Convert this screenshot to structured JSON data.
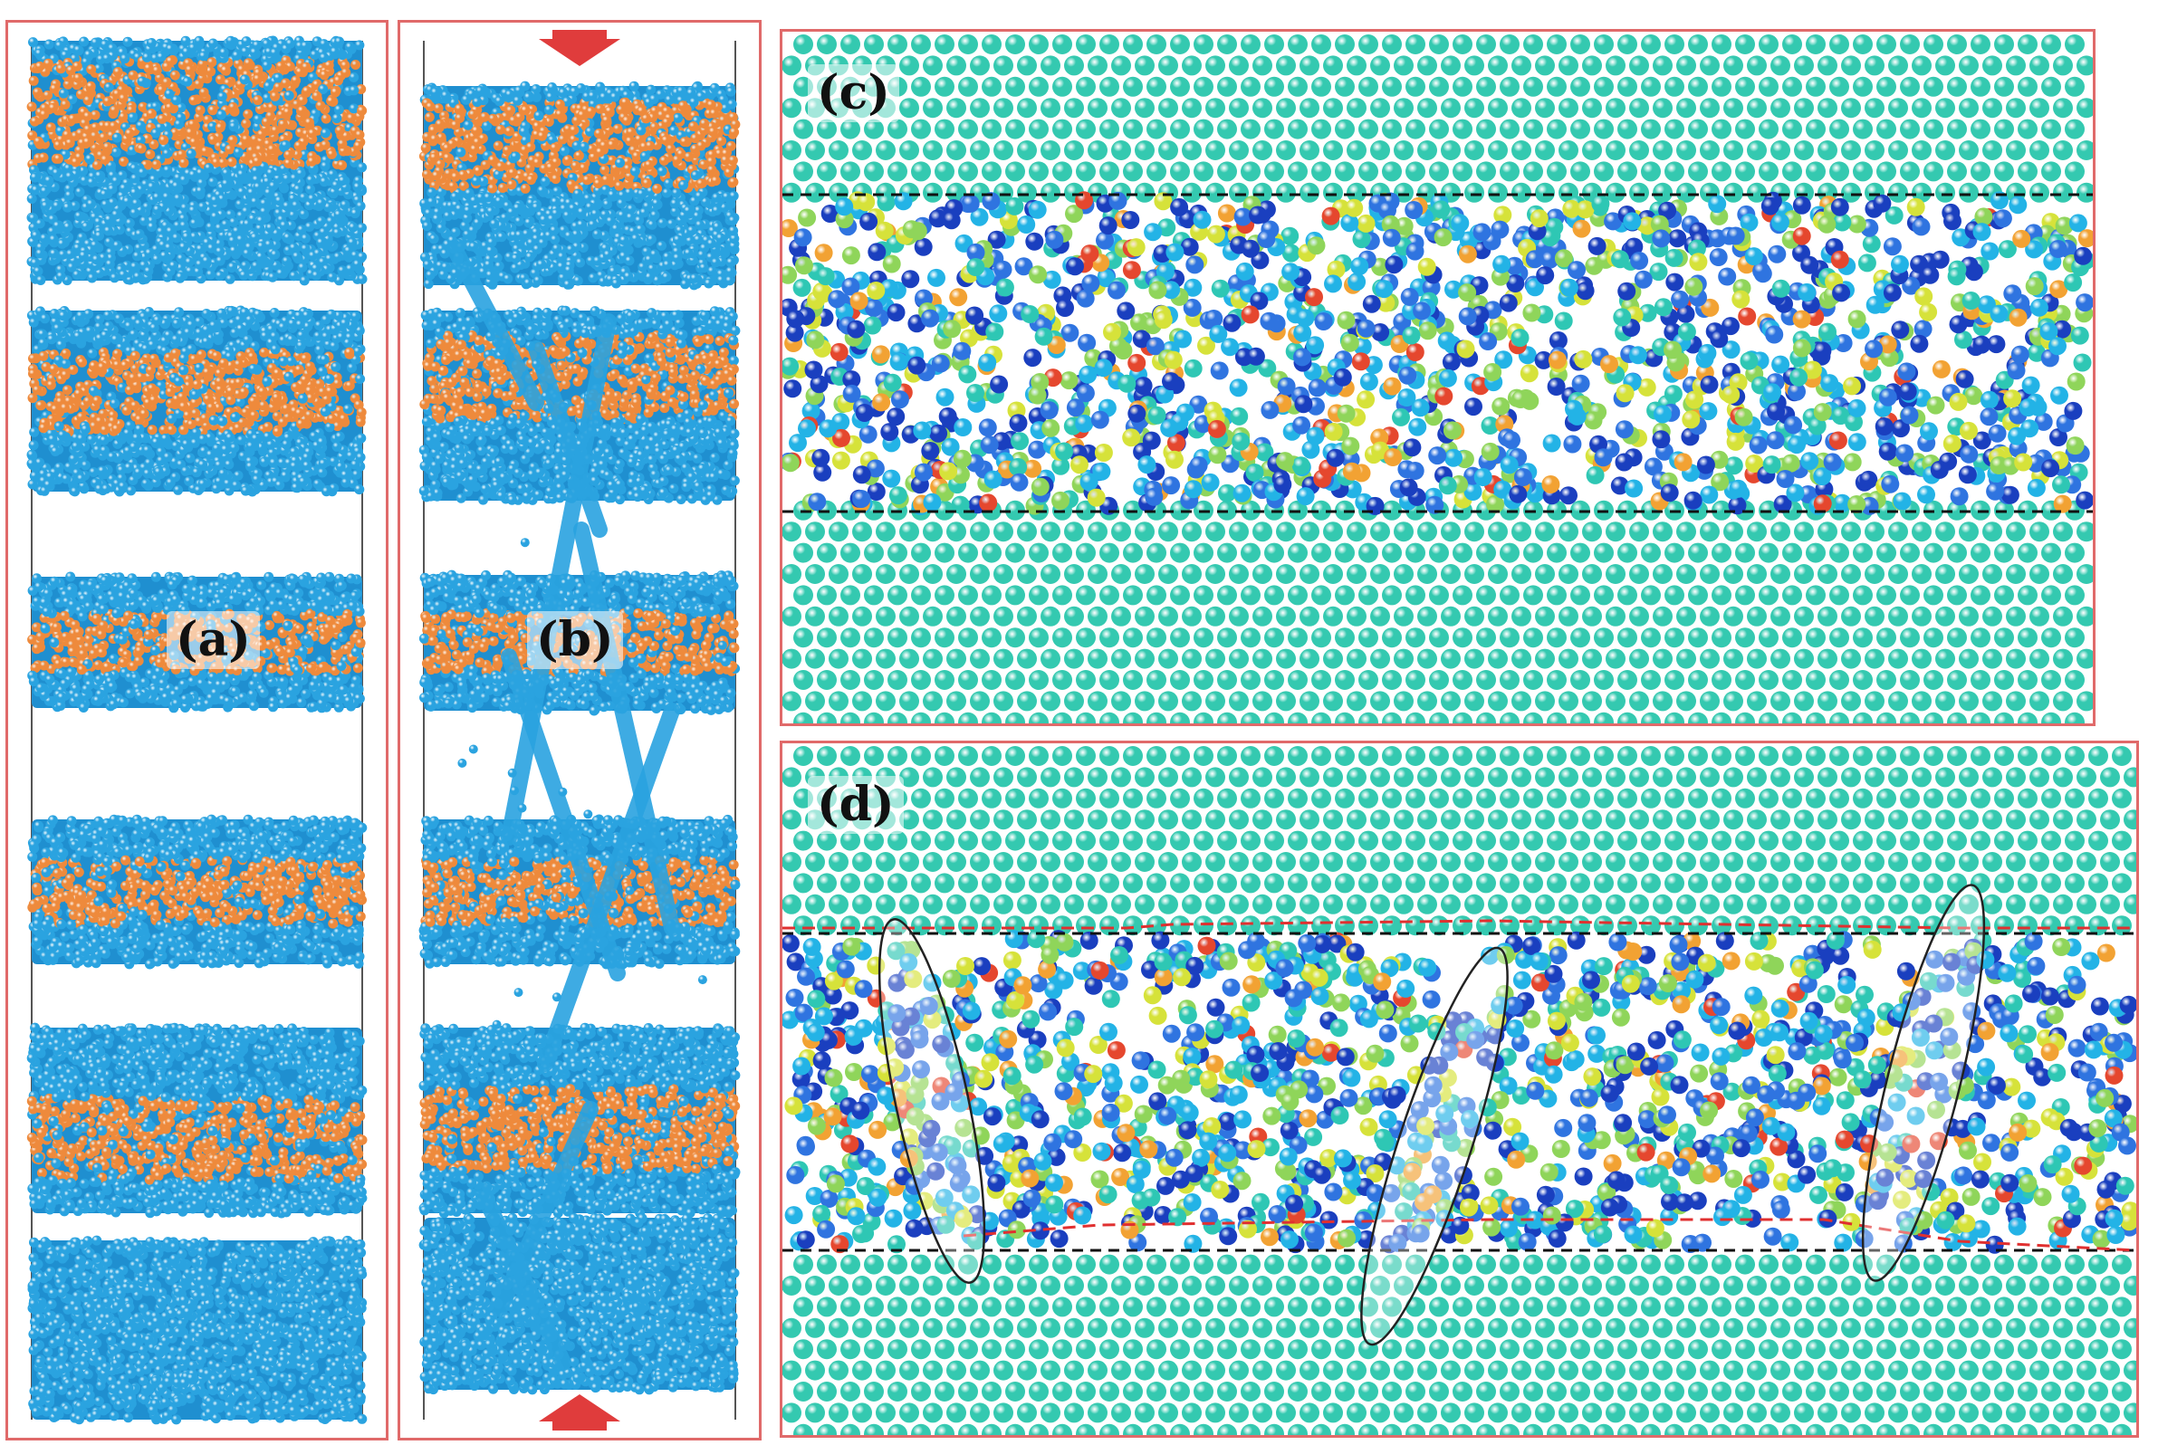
{
  "figure": {
    "panels": [
      {
        "id": "a",
        "label": "(a)"
      },
      {
        "id": "b",
        "label": "(b)"
      },
      {
        "id": "c",
        "label": "(c)"
      },
      {
        "id": "d",
        "label": "(d)"
      }
    ],
    "colors": {
      "frame": "#e06a6a",
      "atom_blue": "#2aa3e0",
      "atom_orange": "#ee8a3c",
      "atom_teal": "#34c9b0",
      "arrow_red": "#e03c3c",
      "dashed_black": "#111111",
      "dashed_red": "#e03030"
    },
    "amorphous_palette": [
      "#1a3fbf",
      "#2f74e0",
      "#23b3e6",
      "#2ec7b4",
      "#8fd55a",
      "#d6e23a",
      "#f2a233",
      "#e5472e"
    ]
  }
}
